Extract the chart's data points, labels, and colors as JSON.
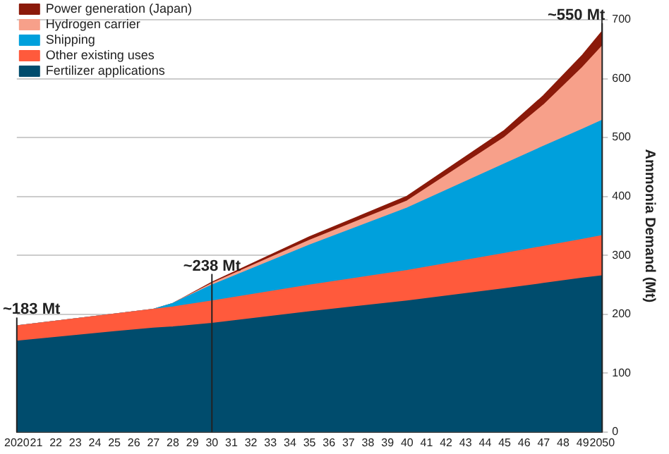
{
  "chart_data": {
    "type": "area",
    "stacked": true,
    "ylabel": "Ammonia Demand (Mt)",
    "x": [
      2020,
      2025,
      2027,
      2028,
      2030,
      2035,
      2040,
      2045,
      2047,
      2049,
      2050
    ],
    "series": [
      {
        "name": "Fertilizer applications",
        "color": "#004c6d",
        "values": [
          154,
          170,
          176,
          178,
          184,
          204,
          222,
          243,
          252,
          261,
          265
        ]
      },
      {
        "name": "Other existing uses",
        "color": "#ff5a3c",
        "values": [
          26,
          30,
          32,
          34,
          38,
          45,
          52,
          60,
          63,
          66,
          68
        ]
      },
      {
        "name": "Shipping",
        "color": "#00a0dc",
        "values": [
          0,
          0,
          0,
          6,
          27,
          68,
          106,
          152,
          170,
          187,
          196
        ]
      },
      {
        "name": "Hydrogen carrier",
        "color": "#f7a08a",
        "values": [
          0,
          0,
          0,
          0,
          3,
          8,
          12,
          45,
          70,
          105,
          126
        ]
      },
      {
        "name": "Power generation (Japan)",
        "color": "#8b1a0a",
        "values": [
          0,
          0,
          0,
          0,
          2,
          6,
          8,
          12,
          16,
          21,
          25
        ]
      }
    ],
    "xlim": [
      2020,
      2050
    ],
    "xticks": [
      {
        "value": 2020,
        "label": "2020"
      },
      {
        "value": 2021,
        "label": "21"
      },
      {
        "value": 2022,
        "label": "22"
      },
      {
        "value": 2023,
        "label": "23"
      },
      {
        "value": 2024,
        "label": "24"
      },
      {
        "value": 2025,
        "label": "25"
      },
      {
        "value": 2026,
        "label": "26"
      },
      {
        "value": 2027,
        "label": "27"
      },
      {
        "value": 2028,
        "label": "28"
      },
      {
        "value": 2029,
        "label": "29"
      },
      {
        "value": 2030,
        "label": "30"
      },
      {
        "value": 2031,
        "label": "31"
      },
      {
        "value": 2032,
        "label": "32"
      },
      {
        "value": 2033,
        "label": "33"
      },
      {
        "value": 2034,
        "label": "34"
      },
      {
        "value": 2035,
        "label": "35"
      },
      {
        "value": 2036,
        "label": "36"
      },
      {
        "value": 2037,
        "label": "37"
      },
      {
        "value": 2038,
        "label": "38"
      },
      {
        "value": 2039,
        "label": "39"
      },
      {
        "value": 2040,
        "label": "40"
      },
      {
        "value": 2041,
        "label": "41"
      },
      {
        "value": 2042,
        "label": "42"
      },
      {
        "value": 2043,
        "label": "43"
      },
      {
        "value": 2044,
        "label": "44"
      },
      {
        "value": 2045,
        "label": "45"
      },
      {
        "value": 2046,
        "label": "46"
      },
      {
        "value": 2047,
        "label": "47"
      },
      {
        "value": 2048,
        "label": "48"
      },
      {
        "value": 2049,
        "label": "49"
      },
      {
        "value": 2050,
        "label": "2050"
      }
    ],
    "ylim": [
      0,
      700
    ],
    "yticks": [
      0,
      100,
      200,
      300,
      400,
      500,
      600,
      700
    ],
    "grid": "y",
    "legend": "top left",
    "annotations": [
      {
        "text": "~183 Mt",
        "x": 2020,
        "y": 180
      },
      {
        "text": "~238 Mt",
        "x": 2030,
        "y": 254
      },
      {
        "text": "~550 Mt",
        "x": 2050,
        "y": 680
      }
    ]
  }
}
